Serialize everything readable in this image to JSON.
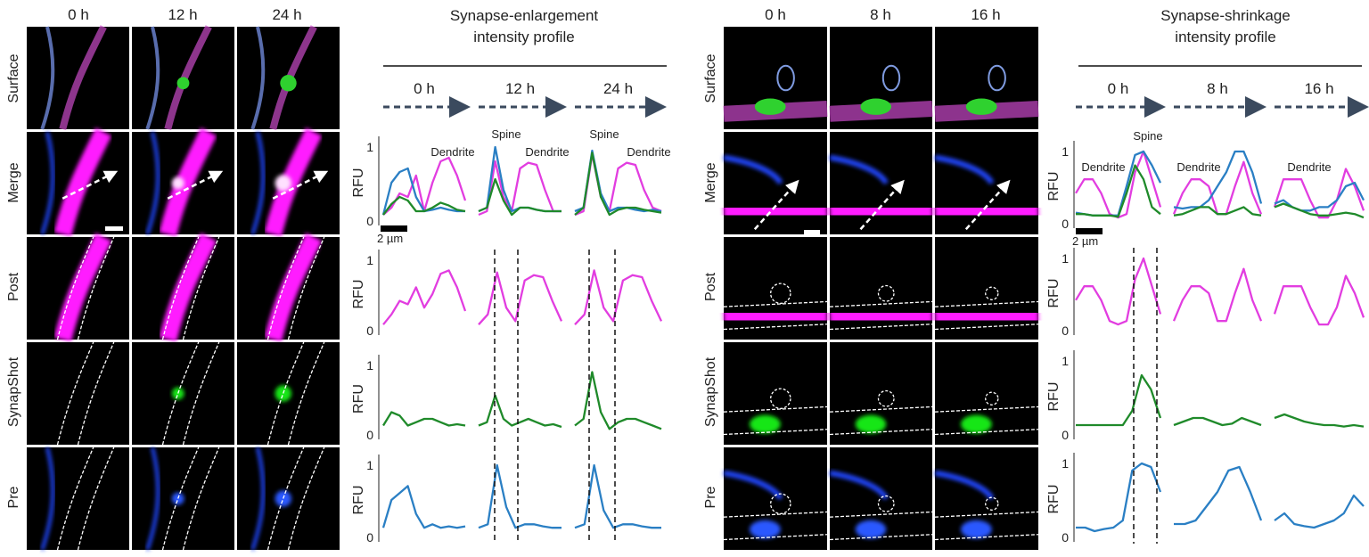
{
  "figure_left": {
    "columns": [
      "0 h",
      "12 h",
      "24 h"
    ],
    "rows": [
      "Surface",
      "Merge",
      "Post",
      "SynapShot",
      "Pre"
    ],
    "title_line1": "Synapse-enlargement",
    "title_line2": "intensity profile"
  },
  "figure_right": {
    "columns": [
      "0 h",
      "8 h",
      "16 h"
    ],
    "rows": [
      "Surface",
      "Merge",
      "Post",
      "SynapShot",
      "Pre"
    ],
    "title_line1": "Synapse-shrinkage",
    "title_line2": "intensity profile"
  },
  "colors": {
    "post": "#e23de0",
    "synapshot": "#1f8a2a",
    "pre": "#2a7fc4",
    "arrow": "#3b4a5e"
  },
  "chart_data": [
    {
      "type": "line",
      "title": "Synapse-enlargement intensity profile",
      "ylabel": "RFU",
      "ylim": [
        0,
        1
      ],
      "y_ticks": [
        "0",
        "1"
      ],
      "scale_bar": "2 µm",
      "annotations": {
        "spine": "Spine",
        "dendrite": "Dendrite"
      },
      "panels": [
        "0 h",
        "12 h",
        "24 h"
      ],
      "merge": [
        {
          "post": [
            0.05,
            0.15,
            0.35,
            0.3,
            0.6,
            0.1,
            0.5,
            0.8,
            0.85,
            0.6,
            0.25
          ],
          "pre": [
            0.05,
            0.5,
            0.65,
            0.7,
            0.3,
            0.1,
            0.12,
            0.15,
            0.12,
            0.1,
            0.1
          ],
          "synapshot": [
            0.05,
            0.2,
            0.3,
            0.25,
            0.1,
            0.1,
            0.15,
            0.22,
            0.18,
            0.12,
            0.1
          ]
        },
        {
          "post": [
            0.05,
            0.1,
            0.8,
            0.3,
            0.1,
            0.7,
            0.78,
            0.75,
            0.4,
            0.1,
            0.1
          ],
          "pre": [
            0.1,
            0.15,
            1.0,
            0.4,
            0.1,
            0.15,
            0.15,
            0.12,
            0.1,
            0.1,
            0.1
          ],
          "synapshot": [
            0.1,
            0.15,
            0.55,
            0.25,
            0.05,
            0.15,
            0.15,
            0.12,
            0.1,
            0.1,
            0.1
          ]
        },
        {
          "post": [
            0.05,
            0.1,
            0.9,
            0.3,
            0.1,
            0.7,
            0.78,
            0.75,
            0.4,
            0.15,
            0.1
          ],
          "pre": [
            0.1,
            0.15,
            0.95,
            0.35,
            0.1,
            0.15,
            0.15,
            0.12,
            0.1,
            0.12,
            0.1
          ],
          "synapshot": [
            0.05,
            0.15,
            0.92,
            0.3,
            0.05,
            0.12,
            0.15,
            0.15,
            0.12,
            0.1,
            0.08
          ]
        }
      ],
      "post": [
        [
          0.05,
          0.2,
          0.4,
          0.35,
          0.6,
          0.3,
          0.5,
          0.8,
          0.85,
          0.6,
          0.25
        ],
        [
          0.05,
          0.2,
          0.82,
          0.3,
          0.1,
          0.7,
          0.78,
          0.75,
          0.4,
          0.1
        ],
        [
          0.05,
          0.2,
          0.85,
          0.3,
          0.1,
          0.7,
          0.78,
          0.75,
          0.4,
          0.1
        ]
      ],
      "synapshot": [
        [
          0.1,
          0.3,
          0.25,
          0.1,
          0.15,
          0.2,
          0.2,
          0.15,
          0.1,
          0.12,
          0.1
        ],
        [
          0.1,
          0.15,
          0.55,
          0.2,
          0.1,
          0.15,
          0.2,
          0.15,
          0.1,
          0.12,
          0.08
        ],
        [
          0.1,
          0.2,
          0.9,
          0.3,
          0.05,
          0.15,
          0.2,
          0.2,
          0.15,
          0.1,
          0.05
        ]
      ],
      "pre": [
        [
          0.1,
          0.5,
          0.6,
          0.7,
          0.3,
          0.1,
          0.15,
          0.1,
          0.12,
          0.1,
          0.12
        ],
        [
          0.1,
          0.15,
          1.0,
          0.4,
          0.1,
          0.15,
          0.15,
          0.12,
          0.1,
          0.1
        ],
        [
          0.1,
          0.15,
          1.0,
          0.35,
          0.1,
          0.15,
          0.15,
          0.12,
          0.1,
          0.1
        ]
      ]
    },
    {
      "type": "line",
      "title": "Synapse-shrinkage intensity profile",
      "ylabel": "RFU",
      "ylim": [
        0,
        1
      ],
      "y_ticks": [
        "0",
        "1"
      ],
      "scale_bar": "2 µm",
      "annotations": {
        "spine": "Spine",
        "dendrite": "Dendrite"
      },
      "panels": [
        "0 h",
        "8 h",
        "16 h"
      ],
      "merge": [
        {
          "post": [
            0.4,
            0.6,
            0.6,
            0.4,
            0.1,
            0.05,
            0.1,
            0.7,
            1.0,
            0.6,
            0.2
          ],
          "pre": [
            0.12,
            0.1,
            0.08,
            0.08,
            0.08,
            0.08,
            0.5,
            0.95,
            1.0,
            0.8,
            0.55
          ],
          "synapshot": [
            0.1,
            0.1,
            0.08,
            0.08,
            0.08,
            0.06,
            0.4,
            0.8,
            0.6,
            0.2,
            0.1
          ]
        },
        {
          "post": [
            0.1,
            0.4,
            0.6,
            0.6,
            0.5,
            0.1,
            0.1,
            0.5,
            0.85,
            0.4,
            0.1
          ],
          "pre": [
            0.2,
            0.18,
            0.2,
            0.2,
            0.3,
            0.5,
            0.7,
            1.0,
            1.0,
            0.7,
            0.25
          ],
          "synapshot": [
            0.08,
            0.1,
            0.15,
            0.2,
            0.2,
            0.1,
            0.1,
            0.15,
            0.2,
            0.1,
            0.08
          ]
        },
        {
          "post": [
            0.2,
            0.6,
            0.6,
            0.6,
            0.3,
            0.05,
            0.05,
            0.3,
            0.75,
            0.5,
            0.15
          ],
          "pre": [
            0.25,
            0.3,
            0.2,
            0.15,
            0.15,
            0.2,
            0.2,
            0.3,
            0.5,
            0.55,
            0.3
          ],
          "synapshot": [
            0.2,
            0.25,
            0.2,
            0.15,
            0.1,
            0.08,
            0.08,
            0.1,
            0.12,
            0.1,
            0.05
          ]
        }
      ],
      "post": [
        [
          0.4,
          0.6,
          0.6,
          0.4,
          0.1,
          0.05,
          0.1,
          0.7,
          1.0,
          0.6,
          0.2
        ],
        [
          0.1,
          0.4,
          0.6,
          0.6,
          0.5,
          0.1,
          0.1,
          0.5,
          0.85,
          0.4,
          0.1
        ],
        [
          0.2,
          0.6,
          0.6,
          0.6,
          0.3,
          0.05,
          0.05,
          0.3,
          0.75,
          0.5,
          0.15
        ]
      ],
      "synapshot": [
        [
          0.1,
          0.1,
          0.1,
          0.1,
          0.1,
          0.1,
          0.3,
          0.8,
          0.6,
          0.2
        ],
        [
          0.1,
          0.15,
          0.2,
          0.2,
          0.15,
          0.1,
          0.12,
          0.2,
          0.15,
          0.1
        ],
        [
          0.2,
          0.25,
          0.2,
          0.15,
          0.12,
          0.1,
          0.1,
          0.08,
          0.1,
          0.08
        ]
      ],
      "pre": [
        [
          0.1,
          0.1,
          0.05,
          0.08,
          0.1,
          0.2,
          0.9,
          1.0,
          0.95,
          0.6
        ],
        [
          0.15,
          0.15,
          0.2,
          0.4,
          0.6,
          0.9,
          0.95,
          0.6,
          0.2
        ],
        [
          0.2,
          0.3,
          0.15,
          0.12,
          0.1,
          0.15,
          0.2,
          0.3,
          0.55,
          0.4
        ]
      ]
    }
  ]
}
